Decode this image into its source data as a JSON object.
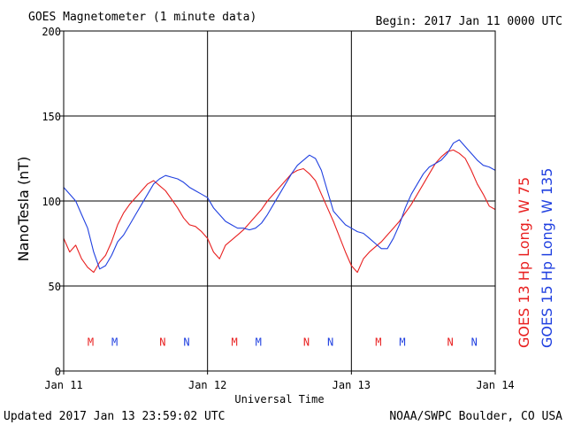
{
  "header": {
    "title": "GOES Magnetometer (1 minute data)",
    "begin": "Begin:  2017 Jan 11 0000 UTC"
  },
  "footer": {
    "updated": "Updated 2017 Jan 13 23:59:02 UTC",
    "credit": "NOAA/SWPC Boulder, CO USA"
  },
  "colors": {
    "goes13": "#e82020",
    "goes15": "#2040e0"
  },
  "chart_data": {
    "type": "line",
    "title": "GOES Magnetometer (1 minute data)",
    "xlabel": "Universal Time",
    "ylabel": "NanoTesla (nT)",
    "xlim": [
      0,
      72
    ],
    "ylim": [
      0,
      200
    ],
    "x_unit": "hours since 2017 Jan 11 0000 UTC",
    "grid": true,
    "y_ticks": [
      0,
      50,
      100,
      150,
      200
    ],
    "y_tick_labels": [
      "0",
      "50",
      "100",
      "150",
      "200"
    ],
    "x_ticks": [
      0,
      24,
      48,
      72
    ],
    "x_tick_labels": [
      "Jan 11",
      "Jan 12",
      "Jan 13",
      "Jan 14"
    ],
    "series": [
      {
        "name": "GOES 13 Hp  Long. W 75",
        "color": "#e82020",
        "x": [
          0,
          1,
          2,
          3,
          4,
          5,
          6,
          7,
          8,
          9,
          10,
          11,
          12,
          13,
          14,
          15,
          16,
          17,
          18,
          19,
          20,
          21,
          22,
          23,
          24,
          25,
          26,
          27,
          28,
          29,
          30,
          31,
          32,
          33,
          34,
          35,
          36,
          37,
          38,
          39,
          40,
          41,
          42,
          43,
          44,
          45,
          46,
          47,
          48,
          49,
          50,
          51,
          52,
          53,
          54,
          55,
          56,
          57,
          58,
          59,
          60,
          61,
          62,
          63,
          64,
          65,
          66,
          67,
          68,
          69,
          70,
          71,
          72
        ],
        "y": [
          78,
          70,
          74,
          66,
          61,
          58,
          64,
          68,
          76,
          86,
          93,
          98,
          102,
          106,
          110,
          112,
          109,
          106,
          101,
          96,
          90,
          86,
          85,
          82,
          78,
          70,
          66,
          74,
          77,
          80,
          83,
          87,
          91,
          95,
          100,
          104,
          108,
          112,
          116,
          118,
          119,
          116,
          112,
          104,
          96,
          88,
          79,
          70,
          62,
          58,
          66,
          70,
          73,
          76,
          80,
          84,
          88,
          93,
          98,
          104,
          110,
          116,
          122,
          126,
          129,
          130,
          128,
          125,
          118,
          110,
          104,
          97,
          95
        ]
      },
      {
        "name": "GOES 15 Hp  Long. W 135",
        "color": "#2040e0",
        "x": [
          0,
          1,
          2,
          3,
          4,
          5,
          6,
          7,
          8,
          9,
          10,
          11,
          12,
          13,
          14,
          15,
          16,
          17,
          18,
          19,
          20,
          21,
          22,
          23,
          24,
          25,
          26,
          27,
          28,
          29,
          30,
          31,
          32,
          33,
          34,
          35,
          36,
          37,
          38,
          39,
          40,
          41,
          42,
          43,
          44,
          45,
          46,
          47,
          48,
          49,
          50,
          51,
          52,
          53,
          54,
          55,
          56,
          57,
          58,
          59,
          60,
          61,
          62,
          63,
          64,
          65,
          66,
          67,
          68,
          69,
          70,
          71,
          72
        ],
        "y": [
          108,
          104,
          100,
          92,
          84,
          70,
          60,
          62,
          68,
          76,
          80,
          86,
          92,
          98,
          104,
          110,
          113,
          115,
          114,
          113,
          111,
          108,
          106,
          104,
          102,
          96,
          92,
          88,
          86,
          84,
          84,
          83,
          84,
          87,
          92,
          98,
          104,
          110,
          116,
          121,
          124,
          127,
          125,
          118,
          106,
          94,
          90,
          86,
          84,
          82,
          81,
          78,
          75,
          72,
          72,
          78,
          86,
          96,
          104,
          110,
          116,
          120,
          122,
          124,
          128,
          134,
          136,
          132,
          128,
          124,
          121,
          120,
          118
        ]
      }
    ],
    "markers": [
      {
        "label": "M",
        "x": 4.5,
        "series": "goes13"
      },
      {
        "label": "M",
        "x": 8.5,
        "series": "goes15"
      },
      {
        "label": "N",
        "x": 16.5,
        "series": "goes13"
      },
      {
        "label": "N",
        "x": 20.5,
        "series": "goes15"
      },
      {
        "label": "M",
        "x": 28.5,
        "series": "goes13"
      },
      {
        "label": "M",
        "x": 32.5,
        "series": "goes15"
      },
      {
        "label": "N",
        "x": 40.5,
        "series": "goes13"
      },
      {
        "label": "N",
        "x": 44.5,
        "series": "goes15"
      },
      {
        "label": "M",
        "x": 52.5,
        "series": "goes13"
      },
      {
        "label": "M",
        "x": 56.5,
        "series": "goes15"
      },
      {
        "label": "N",
        "x": 64.5,
        "series": "goes13"
      },
      {
        "label": "N",
        "x": 68.5,
        "series": "goes15"
      }
    ],
    "marker_y": 17,
    "legend": {
      "placement": "right-vertical",
      "order": [
        "GOES 13 Hp  Long. W 75",
        "GOES 15 Hp  Long. W 135"
      ]
    }
  }
}
